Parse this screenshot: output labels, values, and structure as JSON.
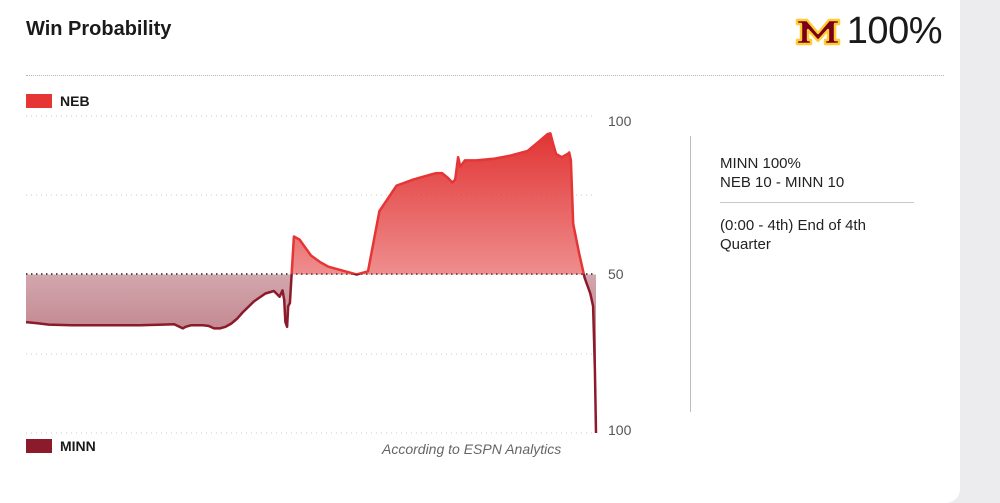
{
  "header": {
    "title": "Win Probability",
    "leader_pct": "100%",
    "leader_logo": "minnesota-m-logo-icon"
  },
  "legend": {
    "top": {
      "label": "NEB",
      "color": "#e53535"
    },
    "bottom": {
      "label": "MINN",
      "color": "#8b1a2a"
    }
  },
  "credit": "According to ESPN Analytics",
  "info": {
    "line1": "MINN 100%",
    "line2": "NEB 10 - MINN 10",
    "line3": "(0:00 - 4th) End of 4th",
    "line4": "Quarter"
  },
  "chart_data": {
    "type": "area",
    "xlabel": "",
    "ylabel": "",
    "ylim": [
      0,
      100
    ],
    "y_tick_labels": {
      "top": "100",
      "mid": "50",
      "bottom": "100"
    },
    "baseline": 50,
    "grid": true,
    "legend_placement": "left",
    "series": [
      {
        "team_pct_neb": true,
        "x": [
          0,
          2,
          4,
          8,
          12,
          16,
          20,
          24,
          26,
          27.5,
          28,
          29,
          30,
          31,
          32,
          33,
          34,
          35,
          36,
          37,
          38,
          40,
          42,
          43.5,
          44.5,
          45,
          45.3,
          45.5,
          45.8,
          46,
          46.3,
          47,
          48,
          49,
          50,
          51.5,
          52.5,
          53,
          54,
          56,
          58,
          60,
          62,
          65,
          68,
          71,
          72,
          73,
          74,
          74.8,
          75.3,
          75.8,
          76.2,
          77,
          79,
          82,
          85,
          88,
          90,
          91.5,
          92,
          92.5,
          93,
          94,
          95,
          95.3,
          95.6,
          96,
          97,
          98,
          99,
          99.5,
          99.8,
          100
        ],
        "values": [
          35,
          34.6,
          34.2,
          34,
          34,
          34,
          34,
          34.2,
          34.3,
          33,
          33.5,
          34,
          34,
          34,
          33.8,
          33,
          33,
          33.5,
          34.5,
          36,
          38,
          41.5,
          44,
          44.8,
          43,
          45,
          42,
          35,
          33.5,
          40,
          41,
          62,
          61,
          58.5,
          56,
          54,
          53,
          52.5,
          52,
          51,
          50,
          51,
          70,
          78,
          80,
          81.5,
          82,
          82,
          80.5,
          79,
          80,
          87,
          84,
          86,
          86,
          86.5,
          87.5,
          89,
          92,
          94.3,
          94.5,
          91,
          88,
          87,
          88,
          88.5,
          86,
          66,
          57,
          49,
          44,
          40,
          20,
          0
        ]
      }
    ]
  }
}
